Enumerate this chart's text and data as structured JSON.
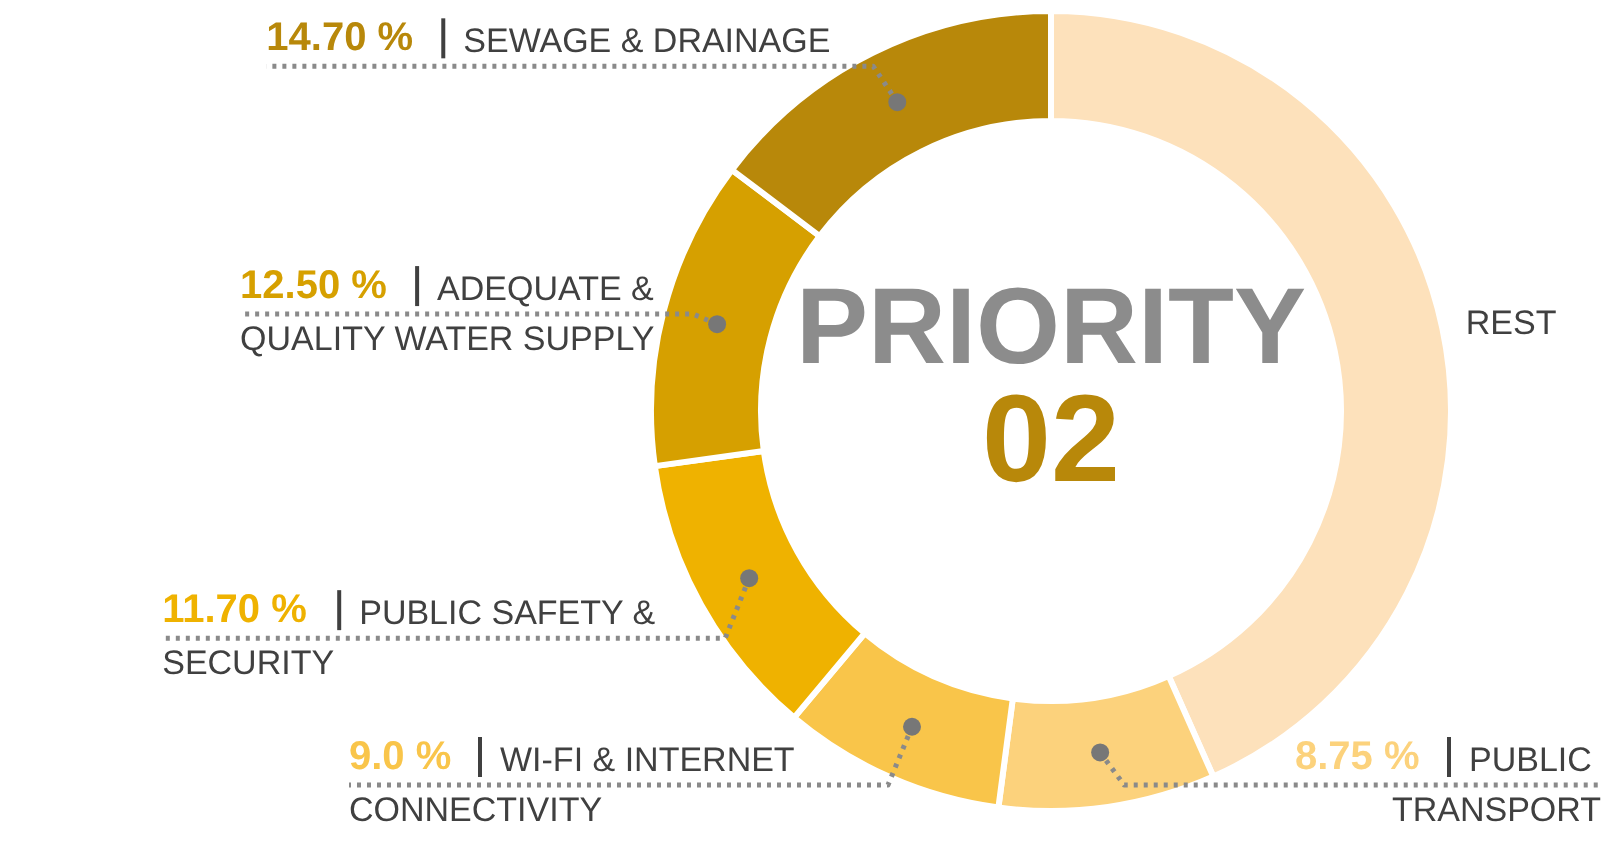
{
  "chart_data": {
    "type": "donut",
    "title": "PRIORITY",
    "subtitle": "02",
    "categories": [
      "REST",
      "PUBLIC TRANSPORT",
      "WI-FI & INTERNET CONNECTIVITY",
      "PUBLIC SAFETY & SECURITY",
      "ADEQUATE & QUALITY WATER SUPPLY",
      "SEWAGE & DRAINAGE"
    ],
    "values": [
      43.35,
      8.75,
      9.0,
      11.7,
      12.5,
      14.7
    ],
    "value_labels": [
      null,
      "8.75 %",
      "9.0 %",
      "11.70 %",
      "12.50 %",
      "14.70 %"
    ],
    "colors": [
      "#fde1bb",
      "#fcd27c",
      "#f9c54a",
      "#efb200",
      "#d6a000",
      "#b8880a"
    ]
  }
}
